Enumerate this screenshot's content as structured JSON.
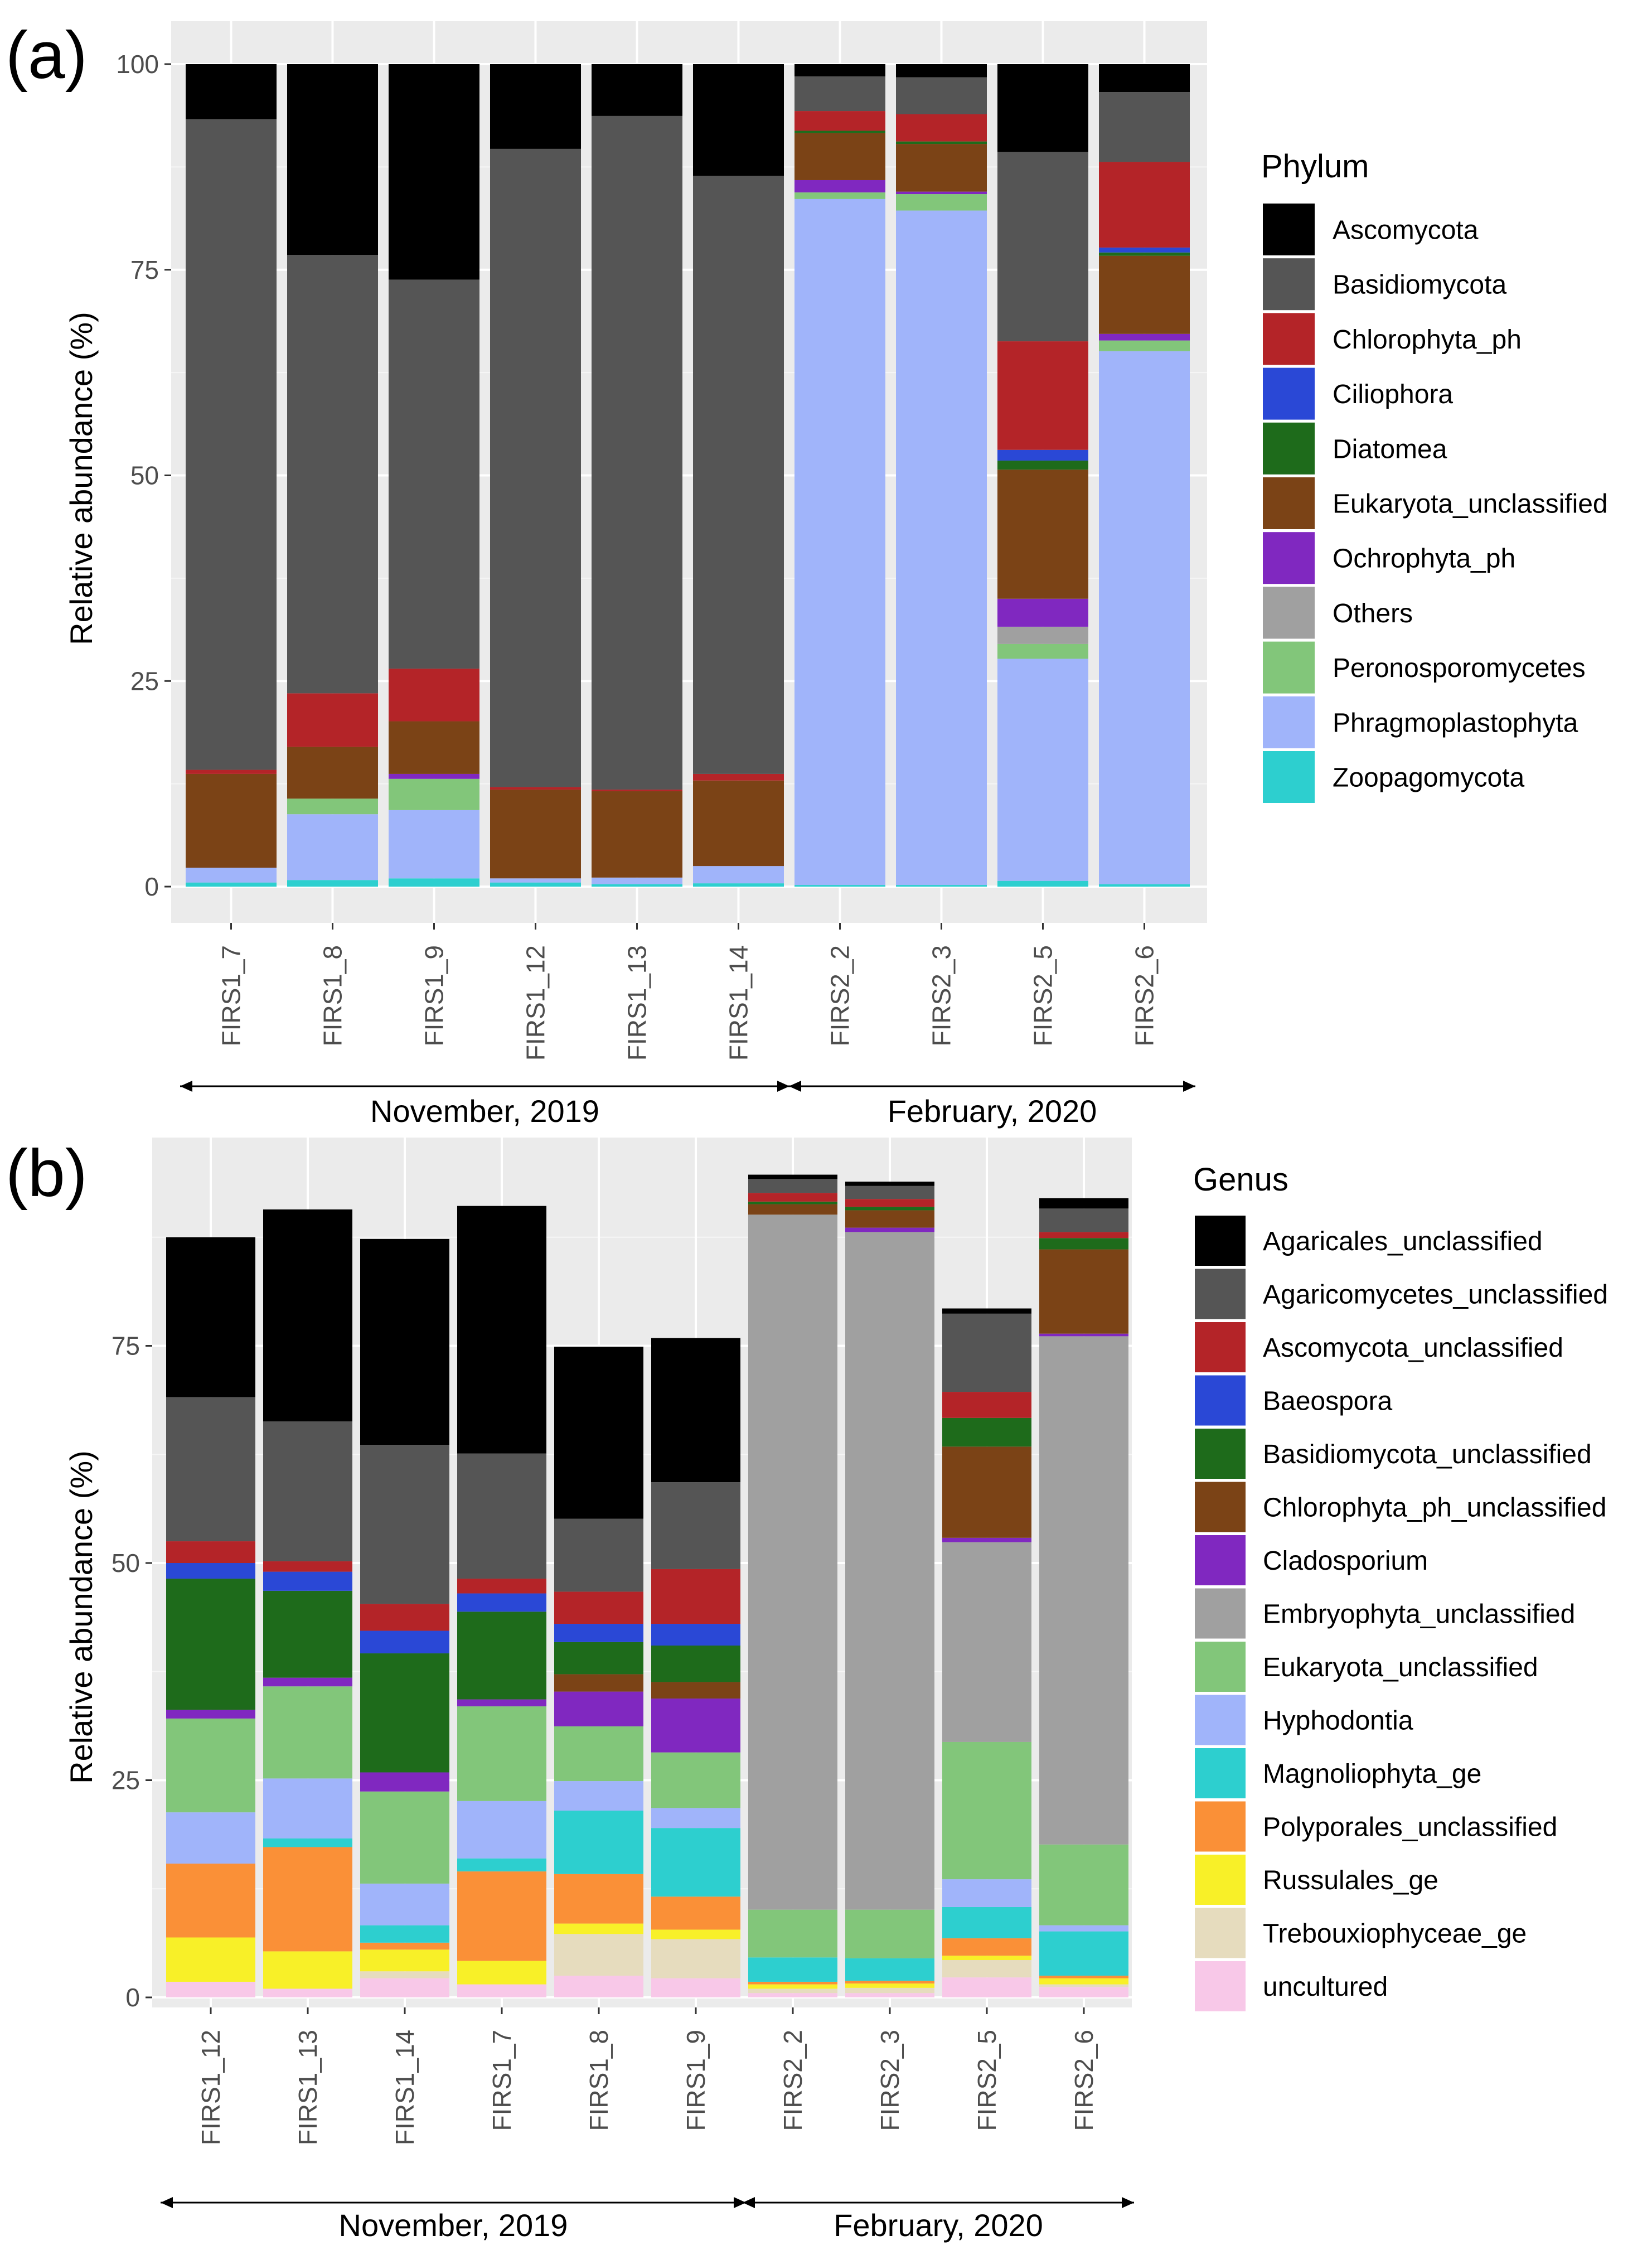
{
  "figure": {
    "panels": [
      "(a)",
      "(b)"
    ]
  },
  "chart_data": [
    {
      "type": "bar",
      "stacked": true,
      "panel_label": "(a)",
      "title": "",
      "xlabel": "",
      "ylabel": "Relative abundance (%)",
      "ylim": [
        0,
        100
      ],
      "yticks": [
        "0",
        "25",
        "50",
        "75",
        "100"
      ],
      "grid": true,
      "legend": {
        "title": "Phylum",
        "placement": "right"
      },
      "categories": [
        "FIRS1_7",
        "FIRS1_8",
        "FIRS1_9",
        "FIRS1_12",
        "FIRS1_13",
        "FIRS1_14",
        "FIRS2_2",
        "FIRS2_3",
        "FIRS2_5",
        "FIRS2_6"
      ],
      "groups": [
        {
          "label": "November, 2019",
          "from": 0,
          "to": 5
        },
        {
          "label": "February, 2020",
          "from": 6,
          "to": 9
        }
      ],
      "series": [
        {
          "name": "Zoopagomycota",
          "color": "#2DCFCF",
          "values": [
            0.5,
            0.8,
            1,
            0.5,
            0.3,
            0.4,
            0.2,
            0.2,
            0.7,
            0.3
          ]
        },
        {
          "name": "Phragmoplastophyta",
          "color": "#A0B4FA",
          "values": [
            1.8,
            8,
            8.3,
            0.5,
            0.8,
            2.1,
            83.4,
            82,
            27,
            64.8
          ]
        },
        {
          "name": "Peronosporomycetes",
          "color": "#82C67A",
          "values": [
            0,
            1.9,
            3.8,
            0,
            0,
            0,
            0.8,
            2,
            1.8,
            1.3
          ]
        },
        {
          "name": "Others",
          "color": "#A0A0A0",
          "values": [
            0,
            0,
            0,
            0,
            0,
            0,
            0,
            0,
            2.1,
            0
          ]
        },
        {
          "name": "Ochrophyta_ph",
          "color": "#8028C0",
          "values": [
            0,
            0,
            0.6,
            0,
            0,
            0,
            1.5,
            0.3,
            3.4,
            0.8
          ]
        },
        {
          "name": "Eukaryota_unclassified",
          "color": "#7B4316",
          "values": [
            11.4,
            6.3,
            6.4,
            10.8,
            10.5,
            10.4,
            5.7,
            5.8,
            15.7,
            9.5
          ]
        },
        {
          "name": "Diatomea",
          "color": "#1E6B1B",
          "values": [
            0,
            0,
            0,
            0,
            0,
            0,
            0.3,
            0.3,
            1.1,
            0.4
          ]
        },
        {
          "name": "Ciliophora",
          "color": "#2A48D6",
          "values": [
            0,
            0,
            0,
            0,
            0,
            0,
            0,
            0,
            1.3,
            0.6
          ]
        },
        {
          "name": "Chlorophyta_ph",
          "color": "#B42428",
          "values": [
            0.5,
            6.5,
            6.4,
            0.3,
            0.2,
            0.8,
            2.4,
            3.3,
            13.2,
            10.4
          ]
        },
        {
          "name": "Basidiomycota",
          "color": "#555555",
          "values": [
            79.1,
            53.3,
            47.3,
            77.6,
            81.9,
            72.7,
            4.2,
            4.5,
            23,
            8.5
          ]
        },
        {
          "name": "Ascomycota",
          "color": "#000000",
          "values": [
            6.7,
            23.2,
            26.2,
            10.3,
            6.3,
            13.6,
            1.5,
            1.6,
            10.7,
            3.4
          ]
        }
      ]
    },
    {
      "type": "bar",
      "stacked": true,
      "panel_label": "(b)",
      "title": "",
      "xlabel": "",
      "ylabel": "Relative abundance (%)",
      "ylim": [
        0,
        100
      ],
      "yticks": [
        "0",
        "25",
        "50",
        "75"
      ],
      "grid": true,
      "legend": {
        "title": "Genus",
        "placement": "right"
      },
      "categories": [
        "FIRS1_12",
        "FIRS1_13",
        "FIRS1_14",
        "FIRS1_7",
        "FIRS1_8",
        "FIRS1_9",
        "FIRS2_2",
        "FIRS2_3",
        "FIRS2_5",
        "FIRS2_6"
      ],
      "groups": [
        {
          "label": "November, 2019",
          "from": 0,
          "to": 5
        },
        {
          "label": "February, 2020",
          "from": 6,
          "to": 9
        }
      ],
      "series": [
        {
          "name": "uncultured",
          "color": "#F8C8E8",
          "values": [
            1.8,
            1,
            2.2,
            1.5,
            2.5,
            2.2,
            0.5,
            0.5,
            2.3,
            1.2
          ]
        },
        {
          "name": "Trebouxiophyceae_ge",
          "color": "#E6DCBE",
          "values": [
            0,
            0,
            0.8,
            0,
            4.8,
            4.5,
            0.5,
            0.6,
            2,
            0.3
          ]
        },
        {
          "name": "Russulales_ge",
          "color": "#F8F028",
          "values": [
            5.1,
            4.3,
            2.5,
            2.7,
            1.2,
            1.1,
            0.5,
            0.5,
            0.5,
            0.7
          ]
        },
        {
          "name": "Polyporales_unclassified",
          "color": "#FA9037",
          "values": [
            8.5,
            12,
            0.8,
            10.3,
            5.7,
            3.8,
            0.3,
            0.3,
            2,
            0.3
          ]
        },
        {
          "name": "Magnoliophyta_ge",
          "color": "#2DCFCF",
          "values": [
            0,
            1,
            2,
            1.5,
            7.3,
            7.9,
            2.8,
            2.6,
            3.6,
            5.1
          ]
        },
        {
          "name": "Hyphodontia",
          "color": "#A0B4FA",
          "values": [
            5.9,
            6.9,
            4.8,
            6.6,
            3.4,
            2.3,
            0,
            0,
            3.2,
            0.7
          ]
        },
        {
          "name": "Eukaryota_unclassified",
          "color": "#82C67A",
          "values": [
            10.8,
            10.6,
            10.6,
            10.9,
            6.3,
            6.4,
            5.5,
            5.6,
            15.8,
            9.3
          ]
        },
        {
          "name": "Embryophyta_unclassified",
          "color": "#A0A0A0",
          "values": [
            0,
            0,
            0,
            0,
            0,
            0,
            80,
            78,
            23,
            58.5
          ]
        },
        {
          "name": "Cladosporium",
          "color": "#8028C0",
          "values": [
            1,
            1,
            2.2,
            0.8,
            4,
            6.2,
            0,
            0.5,
            0.5,
            0.3
          ]
        },
        {
          "name": "Chlorophyta_ph_unclassified",
          "color": "#7B4316",
          "values": [
            0,
            0,
            0,
            0,
            2,
            1.9,
            1.2,
            2,
            10.5,
            9.7
          ]
        },
        {
          "name": "Basidiomycota_unclassified",
          "color": "#1E6B1B",
          "values": [
            15.1,
            10,
            13.7,
            10.1,
            3.7,
            4.2,
            0.3,
            0.4,
            3.3,
            1.3
          ]
        },
        {
          "name": "Baeospora",
          "color": "#2A48D6",
          "values": [
            1.8,
            2.2,
            2.6,
            2.1,
            2.1,
            2.5,
            0,
            0,
            0,
            0
          ]
        },
        {
          "name": "Ascomycota_unclassified",
          "color": "#B42428",
          "values": [
            2.5,
            1.2,
            3.1,
            1.7,
            3.7,
            6.3,
            1,
            0.9,
            3,
            0.7
          ]
        },
        {
          "name": "Agaricomycetes_unclassified",
          "color": "#555555",
          "values": [
            16.6,
            16.1,
            18.3,
            14.4,
            8.4,
            10,
            1.6,
            1.5,
            9,
            2.7
          ]
        },
        {
          "name": "Agaricales_unclassified",
          "color": "#000000",
          "values": [
            18.4,
            24.4,
            23.7,
            28.5,
            19.8,
            16.6,
            0.5,
            0.5,
            0.6,
            1.2
          ]
        }
      ]
    }
  ]
}
